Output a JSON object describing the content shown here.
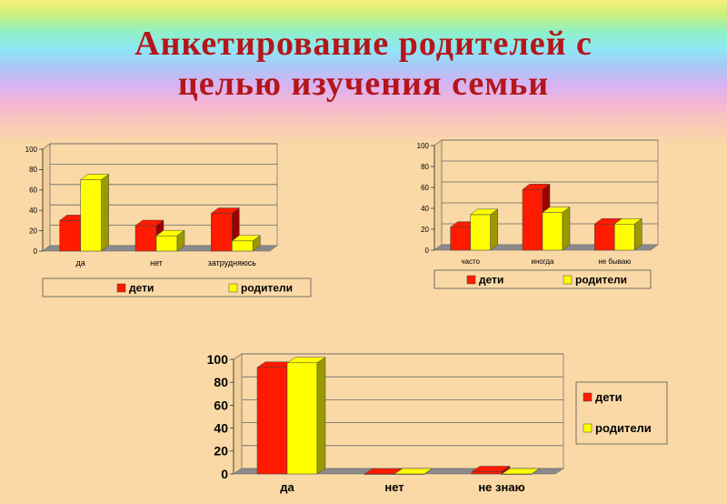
{
  "page": {
    "title_line1": "Анкетирование родителей с",
    "title_line2": "целью изучения семьи"
  },
  "colors": {
    "series_dark": "#9b0000",
    "series_bright": "#ff1a00",
    "series2_dark": "#9a9a00",
    "series2_bright": "#ffff00"
  },
  "chart_data": [
    {
      "type": "bar",
      "categories": [
        "да",
        "нет",
        "затрудняюсь"
      ],
      "series": [
        {
          "name": "дети",
          "values": [
            30,
            25,
            37
          ]
        },
        {
          "name": "родители",
          "values": [
            70,
            15,
            10
          ]
        }
      ],
      "ylim": [
        0,
        100
      ],
      "yticks": [
        "0",
        "20",
        "40",
        "60",
        "80",
        "100"
      ],
      "legend": "bottom"
    },
    {
      "type": "bar",
      "categories": [
        "часто",
        "иногда",
        "не бываю"
      ],
      "series": [
        {
          "name": "дети",
          "values": [
            22,
            58,
            25
          ]
        },
        {
          "name": "родители",
          "values": [
            34,
            36,
            25
          ]
        }
      ],
      "ylim": [
        0,
        100
      ],
      "yticks": [
        "0",
        "20",
        "40",
        "60",
        "80",
        "100"
      ],
      "legend": "bottom"
    },
    {
      "type": "bar",
      "categories": [
        "да",
        "нет",
        "не знаю"
      ],
      "series": [
        {
          "name": "дети",
          "values": [
            93,
            0,
            2
          ]
        },
        {
          "name": "родители",
          "values": [
            97,
            0,
            0
          ]
        }
      ],
      "ylim": [
        0,
        100
      ],
      "yticks": [
        "0",
        "20",
        "40",
        "60",
        "80",
        "100"
      ],
      "legend": "right"
    }
  ]
}
